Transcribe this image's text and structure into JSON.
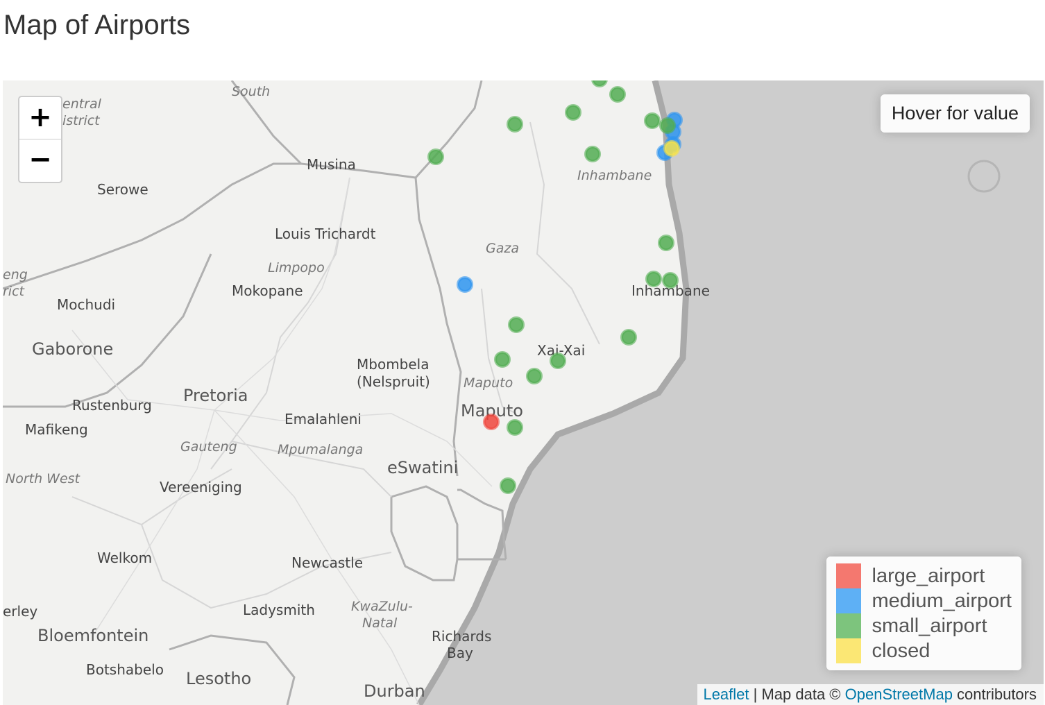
{
  "page": {
    "title": "Map of Airports"
  },
  "map": {
    "zoom_in_label": "+",
    "zoom_out_label": "−",
    "info_box_text": "Hover for value",
    "attribution": {
      "leaflet": "Leaflet",
      "separator": " | Map data © ",
      "osm": "OpenStreetMap",
      "suffix": " contributors"
    },
    "legend": [
      {
        "label": "large_airport",
        "color": "#f4786f"
      },
      {
        "label": "medium_airport",
        "color": "#5eb0f5"
      },
      {
        "label": "small_airport",
        "color": "#7dc47d"
      },
      {
        "label": "closed",
        "color": "#fbe774"
      }
    ],
    "marker_colors": {
      "large_airport": "#f0463c",
      "medium_airport": "#2e95f0",
      "small_airport": "#52ad52",
      "closed": "#f7e34a"
    },
    "place_labels": [
      {
        "text": "South",
        "kind": "prov"
      },
      {
        "text": "Central District",
        "kind": "prov"
      },
      {
        "text": "Serowe",
        "kind": "city"
      },
      {
        "text": "Musina",
        "kind": "city"
      },
      {
        "text": "Louis Trichardt",
        "kind": "city"
      },
      {
        "text": "Limpopo",
        "kind": "prov"
      },
      {
        "text": "Mokopane",
        "kind": "city"
      },
      {
        "text": "Mochudi",
        "kind": "city"
      },
      {
        "text": "Gaborone",
        "kind": "big"
      },
      {
        "text": "Mbombela",
        "kind": "city"
      },
      {
        "text": "(Nelspruit)",
        "kind": "city"
      },
      {
        "text": "Pretoria",
        "kind": "big"
      },
      {
        "text": "Rustenburg",
        "kind": "city"
      },
      {
        "text": "Mafikeng",
        "kind": "city"
      },
      {
        "text": "Emalahleni",
        "kind": "city"
      },
      {
        "text": "Gauteng",
        "kind": "prov"
      },
      {
        "text": "Mpumalanga",
        "kind": "prov"
      },
      {
        "text": "eSwatini",
        "kind": "big"
      },
      {
        "text": "North West",
        "kind": "prov"
      },
      {
        "text": "Vereeniging",
        "kind": "city"
      },
      {
        "text": "Welkom",
        "kind": "city"
      },
      {
        "text": "Newcastle",
        "kind": "city"
      },
      {
        "text": "KwaZulu-",
        "kind": "prov"
      },
      {
        "text": "Natal",
        "kind": "prov"
      },
      {
        "text": "Ladysmith",
        "kind": "city"
      },
      {
        "text": "Bloemfontein",
        "kind": "big"
      },
      {
        "text": "Botshabelo",
        "kind": "city"
      },
      {
        "text": "Lesotho",
        "kind": "big"
      },
      {
        "text": "Richards",
        "kind": "city"
      },
      {
        "text": "Bay",
        "kind": "city"
      },
      {
        "text": "Durban",
        "kind": "big"
      },
      {
        "text": "Inhambane",
        "kind": "prov"
      },
      {
        "text": "Gaza",
        "kind": "prov"
      },
      {
        "text": "Inhambane",
        "kind": "city"
      },
      {
        "text": "Xai-Xai",
        "kind": "city"
      },
      {
        "text": "Maputo",
        "kind": "prov"
      },
      {
        "text": "Maputo",
        "kind": "big"
      },
      {
        "text": "eng",
        "kind": "prov"
      },
      {
        "text": "rict",
        "kind": "prov"
      },
      {
        "text": "erley",
        "kind": "city"
      }
    ],
    "airports": [
      {
        "type": "small_airport"
      },
      {
        "type": "small_airport"
      },
      {
        "type": "small_airport"
      },
      {
        "type": "small_airport"
      },
      {
        "type": "small_airport"
      },
      {
        "type": "small_airport"
      },
      {
        "type": "small_airport"
      },
      {
        "type": "medium_airport"
      },
      {
        "type": "medium_airport"
      },
      {
        "type": "medium_airport"
      },
      {
        "type": "medium_airport"
      },
      {
        "type": "small_airport"
      },
      {
        "type": "closed"
      },
      {
        "type": "small_airport"
      },
      {
        "type": "small_airport"
      },
      {
        "type": "small_airport"
      },
      {
        "type": "medium_airport"
      },
      {
        "type": "small_airport"
      },
      {
        "type": "small_airport"
      },
      {
        "type": "small_airport"
      },
      {
        "type": "small_airport"
      },
      {
        "type": "small_airport"
      },
      {
        "type": "large_airport"
      },
      {
        "type": "small_airport"
      },
      {
        "type": "small_airport"
      }
    ]
  }
}
